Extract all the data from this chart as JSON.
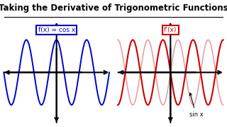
{
  "title": "Taking the Derivative of Trigonometric Functions",
  "title_fontsize": 8.5,
  "title_fontweight": "bold",
  "background_color": "#ffffff",
  "left_label": "f(x) = cos x",
  "left_label_color": "#0000cc",
  "right_label": "f’(x)",
  "right_label_color": "#cc0000",
  "sinx_label": "sin x",
  "cos_color": "#0000cc",
  "sin_color": "#cc0000",
  "sin_faded_color": "#e8a0a0",
  "axis_color": "#000000"
}
